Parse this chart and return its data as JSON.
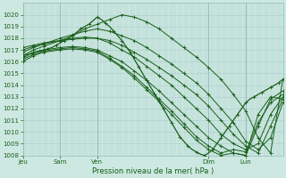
{
  "background_color": "#cce8e0",
  "plot_bg_color": "#cce8e0",
  "grid_color": "#aacccc",
  "line_color": "#1a5e1a",
  "ylim": [
    1008,
    1021
  ],
  "yticks": [
    1008,
    1009,
    1010,
    1011,
    1012,
    1013,
    1014,
    1015,
    1016,
    1017,
    1018,
    1019,
    1020
  ],
  "xlabel": "Pression niveau de la mer( hPa )",
  "xtick_labels": [
    "Jeu",
    "Sam",
    "Ven",
    "Dim",
    "Lun"
  ],
  "xtick_positions": [
    0,
    18,
    36,
    90,
    108
  ],
  "xmax": 126,
  "vlines": [
    0,
    18,
    36,
    90,
    108,
    126
  ],
  "lines": [
    {
      "x": [
        0,
        5,
        10,
        18,
        24,
        30,
        36,
        42,
        48,
        54,
        60,
        66,
        72,
        78,
        84,
        90,
        96,
        102,
        108,
        114,
        120,
        126
      ],
      "y": [
        1016.5,
        1017.0,
        1017.3,
        1017.8,
        1018.2,
        1018.8,
        1019.2,
        1019.6,
        1020.0,
        1019.8,
        1019.4,
        1018.8,
        1018.0,
        1017.2,
        1016.4,
        1015.5,
        1014.5,
        1013.2,
        1011.8,
        1009.5,
        1008.2,
        1014.5
      ]
    },
    {
      "x": [
        0,
        5,
        10,
        18,
        24,
        30,
        36,
        42,
        48,
        54,
        60,
        66,
        72,
        78,
        84,
        90,
        96,
        102,
        108,
        114,
        120,
        126
      ],
      "y": [
        1016.8,
        1017.2,
        1017.5,
        1018.0,
        1018.3,
        1018.6,
        1018.8,
        1018.6,
        1018.2,
        1017.8,
        1017.2,
        1016.5,
        1015.8,
        1015.0,
        1014.2,
        1013.2,
        1012.0,
        1010.8,
        1009.2,
        1008.5,
        1009.5,
        1012.5
      ]
    },
    {
      "x": [
        0,
        5,
        10,
        18,
        24,
        30,
        36,
        42,
        48,
        54,
        60,
        66,
        72,
        78,
        84,
        90,
        96,
        102,
        108,
        114,
        120,
        126
      ],
      "y": [
        1017.0,
        1017.3,
        1017.5,
        1017.8,
        1017.9,
        1018.0,
        1018.0,
        1017.8,
        1017.4,
        1016.8,
        1016.2,
        1015.5,
        1014.8,
        1014.0,
        1013.2,
        1012.2,
        1011.0,
        1009.8,
        1008.8,
        1008.2,
        1010.5,
        1012.8
      ]
    },
    {
      "x": [
        0,
        5,
        10,
        18,
        24,
        30,
        36,
        42,
        48,
        54,
        60,
        66,
        72,
        78,
        84,
        90,
        96,
        102,
        108,
        114,
        120,
        126
      ],
      "y": [
        1017.2,
        1017.4,
        1017.6,
        1017.8,
        1018.0,
        1018.1,
        1018.0,
        1017.6,
        1017.0,
        1016.4,
        1015.6,
        1014.8,
        1014.0,
        1013.0,
        1012.0,
        1011.0,
        1009.8,
        1009.0,
        1008.5,
        1009.0,
        1011.5,
        1013.0
      ]
    },
    {
      "x": [
        0,
        5,
        10,
        18,
        24,
        30,
        36,
        42,
        48,
        54,
        60,
        66,
        72,
        78,
        84,
        90,
        96,
        102,
        108,
        114,
        120,
        126
      ],
      "y": [
        1016.3,
        1016.8,
        1017.0,
        1017.2,
        1017.3,
        1017.2,
        1017.0,
        1016.5,
        1016.0,
        1015.2,
        1014.4,
        1013.5,
        1012.5,
        1011.5,
        1010.5,
        1009.5,
        1008.8,
        1008.2,
        1008.0,
        1010.5,
        1012.8,
        1013.5
      ]
    },
    {
      "x": [
        0,
        5,
        10,
        18,
        24,
        30,
        36,
        42,
        48,
        54,
        60,
        66,
        72,
        78,
        84,
        90,
        96,
        102,
        108,
        114,
        120,
        126
      ],
      "y": [
        1016.0,
        1016.5,
        1016.8,
        1017.0,
        1017.1,
        1017.0,
        1016.8,
        1016.2,
        1015.5,
        1014.6,
        1013.6,
        1012.6,
        1011.5,
        1010.4,
        1009.3,
        1008.5,
        1008.0,
        1008.2,
        1008.0,
        1011.5,
        1013.0,
        1012.8
      ]
    },
    {
      "x": [
        0,
        5,
        10,
        18,
        24,
        30,
        36,
        42,
        48,
        54,
        60,
        66,
        72,
        78,
        84,
        90,
        96,
        102,
        108,
        114,
        120,
        126
      ],
      "y": [
        1016.2,
        1016.6,
        1016.9,
        1017.1,
        1017.2,
        1017.1,
        1016.9,
        1016.3,
        1015.6,
        1014.8,
        1013.8,
        1012.8,
        1011.8,
        1010.7,
        1009.6,
        1008.8,
        1008.2,
        1008.5,
        1008.3,
        1010.8,
        1012.5,
        1013.2
      ]
    },
    {
      "x": [
        0,
        2,
        4,
        6,
        8,
        10,
        12,
        14,
        16,
        18,
        20,
        22,
        24,
        26,
        28,
        30,
        32,
        34,
        36,
        38,
        40,
        42,
        44,
        46,
        48,
        50,
        52,
        54,
        56,
        58,
        60,
        62,
        64,
        66,
        68,
        70,
        72,
        74,
        76,
        78,
        80,
        82,
        84,
        86,
        88,
        90,
        92,
        94,
        96,
        98,
        100,
        102,
        104,
        106,
        108,
        110,
        112,
        114,
        116,
        118,
        120,
        122,
        124,
        126
      ],
      "y": [
        1016.5,
        1016.6,
        1016.7,
        1016.8,
        1016.9,
        1017.0,
        1017.1,
        1017.2,
        1017.4,
        1017.6,
        1017.8,
        1018.0,
        1018.2,
        1018.5,
        1018.8,
        1019.0,
        1019.2,
        1019.5,
        1019.8,
        1019.6,
        1019.3,
        1019.0,
        1018.6,
        1018.2,
        1017.8,
        1017.3,
        1016.8,
        1016.2,
        1015.6,
        1015.0,
        1014.4,
        1013.8,
        1013.2,
        1012.6,
        1012.0,
        1011.4,
        1010.8,
        1010.2,
        1009.6,
        1009.2,
        1008.8,
        1008.5,
        1008.3,
        1008.1,
        1008.0,
        1008.2,
        1008.5,
        1009.0,
        1009.5,
        1010.0,
        1010.5,
        1011.0,
        1011.5,
        1012.0,
        1012.5,
        1012.8,
        1013.0,
        1013.2,
        1013.4,
        1013.6,
        1013.8,
        1014.0,
        1014.2,
        1014.5
      ],
      "is_dense": true
    }
  ]
}
